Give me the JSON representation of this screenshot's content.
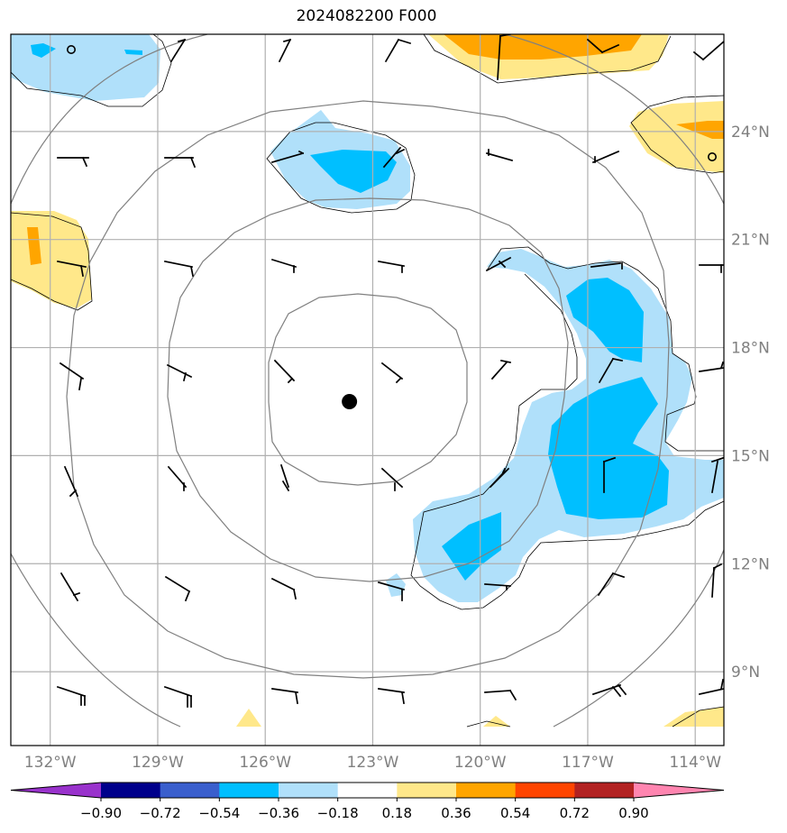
{
  "title": "2024082200 F000",
  "map": {
    "lon_range": [
      -133.1,
      -113.2
    ],
    "lat_range": [
      6.95,
      26.7
    ],
    "lat_ticks": [
      {
        "value": 9,
        "label": "9°N"
      },
      {
        "value": 12,
        "label": "12°N"
      },
      {
        "value": 15,
        "label": "15°N"
      },
      {
        "value": 18,
        "label": "18°N"
      },
      {
        "value": 21,
        "label": "21°N"
      },
      {
        "value": 24,
        "label": "24°N"
      }
    ],
    "lon_ticks": [
      {
        "value": -132,
        "label": "132°W"
      },
      {
        "value": -129,
        "label": "129°W"
      },
      {
        "value": -126,
        "label": "126°W"
      },
      {
        "value": -123,
        "label": "123°W"
      },
      {
        "value": -120,
        "label": "120°W"
      },
      {
        "value": -117,
        "label": "117°W"
      },
      {
        "value": -114,
        "label": "114°W"
      }
    ],
    "grid": true,
    "storm_center": {
      "lon": -123.65,
      "lat": 16.5
    },
    "colors": {
      "grid": "#b0b0b0",
      "tick_label": "#808080",
      "circle": "#808080",
      "light_blue": "#b0e0fa",
      "blue": "#00bfff",
      "light_yellow": "#ffe88a",
      "orange": "#ffa500"
    }
  },
  "colorbar": {
    "levels": [
      "−0.90",
      "−0.72",
      "−0.54",
      "−0.36",
      "−0.18",
      "0.18",
      "0.36",
      "0.54",
      "0.72",
      "0.90"
    ],
    "colors": [
      "#9932cc",
      "#00008b",
      "#3a5fcd",
      "#00bfff",
      "#b0e0fa",
      "#ffffff",
      "#ffe88a",
      "#ffa500",
      "#ff4500",
      "#b22222",
      "#ff85b0"
    ]
  }
}
